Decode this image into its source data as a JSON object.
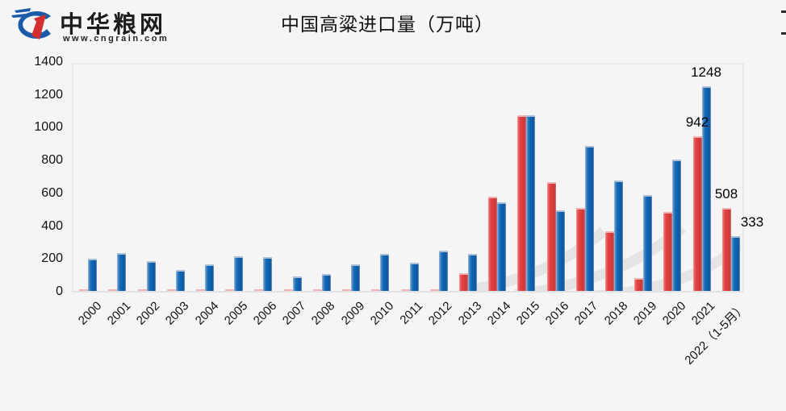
{
  "header": {
    "logo_text": "中华粮网",
    "logo_url": "www.cngrain.com",
    "title": "中国高粱进口量（万吨）"
  },
  "colors": {
    "red_bar": "#da3b3b",
    "blue_bar": "#0d5fae",
    "background": "#f5f5f6",
    "plot_border": "#e9e9e9",
    "watermark": "#e2e2e2",
    "text": "#111111"
  },
  "chart_data": {
    "type": "bar",
    "title": "中国高粱进口量（万吨）",
    "xlabel": "",
    "ylabel": "",
    "ylim": [
      0,
      1400
    ],
    "ytick_step": 200,
    "grid": false,
    "legend": "none",
    "categories": [
      "2000",
      "2001",
      "2002",
      "2003",
      "2004",
      "2005",
      "2006",
      "2007",
      "2008",
      "2009",
      "2010",
      "2011",
      "2012",
      "2013",
      "2014",
      "2015",
      "2016",
      "2017",
      "2018",
      "2019",
      "2020",
      "2021",
      "2022（1-5月）"
    ],
    "series": [
      {
        "name": "series-red",
        "color": "#da3b3b",
        "values": [
          7,
          7,
          7,
          4,
          7,
          7,
          7,
          4,
          7,
          7,
          7,
          7,
          10,
          109,
          573,
          1072,
          662,
          507,
          362,
          80,
          480,
          942,
          508
        ]
      },
      {
        "name": "series-blue",
        "color": "#0d5fae",
        "values": [
          195,
          230,
          183,
          127,
          160,
          212,
          207,
          87,
          102,
          163,
          228,
          170,
          248,
          225,
          540,
          1069,
          493,
          883,
          675,
          586,
          803,
          1248,
          333
        ]
      }
    ],
    "data_labels": [
      {
        "text": "1248",
        "year": "2021",
        "series": "series-blue",
        "placement": "above"
      },
      {
        "text": "942",
        "year": "2021",
        "series": "series-red",
        "placement": "above"
      },
      {
        "text": "508",
        "year": "2022（1-5月）",
        "series": "series-red",
        "placement": "above"
      },
      {
        "text": "333",
        "year": "2022（1-5月）",
        "series": "series-blue",
        "placement": "above-right"
      }
    ]
  },
  "edge_marks": [
    "-",
    "-"
  ]
}
